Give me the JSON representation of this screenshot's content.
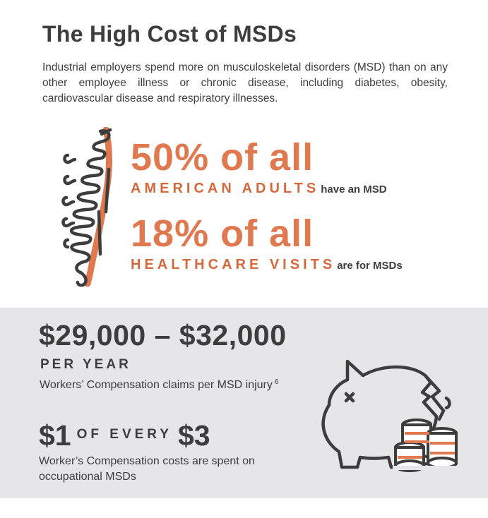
{
  "header": {
    "title": "The High Cost of MSDs",
    "intro": "Industrial employers spend more on musculoskeletal disorders (MSD) than on any other employee illness or chronic disease, including diabetes, obesity, cardiovascular disease and respiratory illnesses."
  },
  "stats": [
    {
      "big": "50% of all",
      "caps": "AMERICAN ADULTS",
      "tail": "have an MSD"
    },
    {
      "big": "18% of all",
      "caps": "HEALTHCARE VISITS",
      "tail": "are for MSDs"
    }
  ],
  "cost": {
    "range": "$29,000 – $32,000",
    "period": "PER YEAR",
    "claims_text": "Workers’ Compensation claims per MSD injury",
    "footnote": "6"
  },
  "ratio": {
    "first": "$1",
    "middle": "OF EVERY",
    "second": "$3",
    "description": "Worker’s Compensation costs are spent on occupational MSDs"
  },
  "colors": {
    "accent": "#e07950",
    "text": "#3d3d3d",
    "band": "#e6e6e9"
  },
  "icons": [
    "spine-icon",
    "broken-piggy-bank-icon",
    "coin-stack-icon"
  ]
}
